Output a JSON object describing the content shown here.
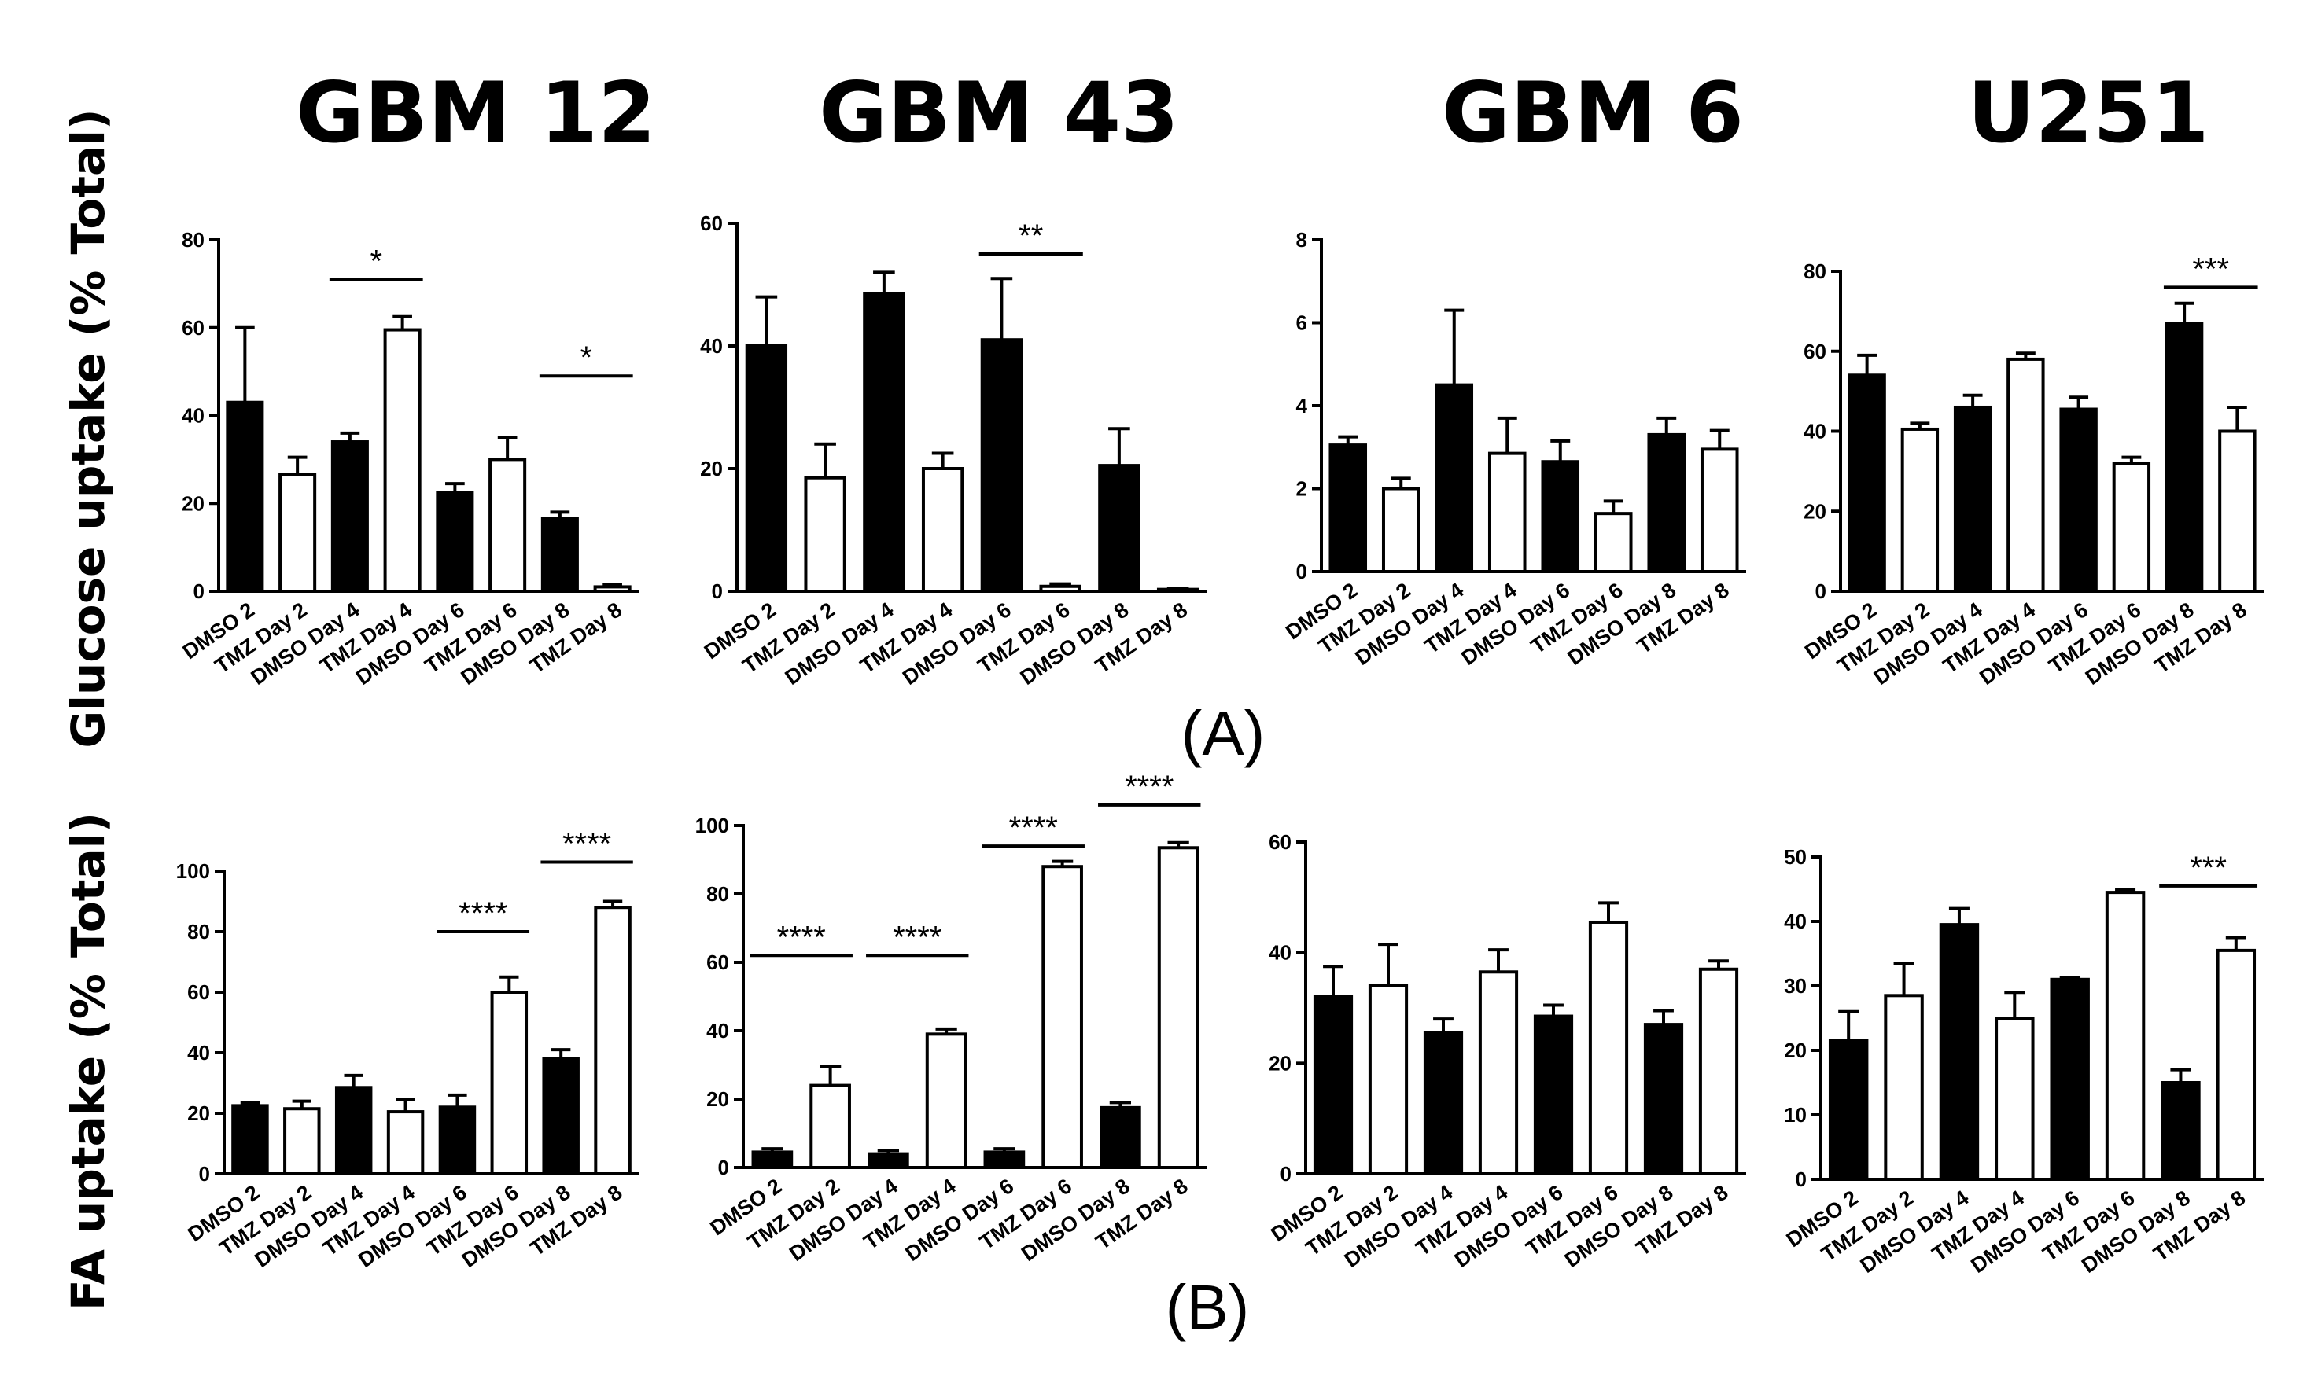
{
  "figure": {
    "column_titles": [
      "GBM 12",
      "GBM 43",
      "GBM 6",
      "U251"
    ],
    "row_ylabels": [
      "Glucose uptake (% Total)",
      "FA uptake (% Total)"
    ],
    "panel_labels": [
      "(A)",
      "(B)"
    ],
    "colors": {
      "dmso_fill": "#000000",
      "tmz_fill": "#ffffff",
      "stroke": "#000000"
    }
  },
  "chart_data": [
    {
      "type": "bar",
      "row": "A",
      "title": "GBM 12",
      "ylabel": "Glucose uptake (% Total)",
      "categories": [
        "DMSO 2",
        "TMZ Day 2",
        "DMSO Day 4",
        "TMZ Day 4",
        "DMSO Day 6",
        "TMZ Day 6",
        "DMSO Day 8",
        "TMZ Day 8"
      ],
      "values": [
        43,
        26.5,
        34,
        59.5,
        22.5,
        30,
        16.5,
        1
      ],
      "errors": [
        17,
        4,
        2,
        3,
        2,
        5,
        1.5,
        0.5
      ],
      "ylim": [
        0,
        80
      ],
      "yticks": [
        0,
        20,
        40,
        60,
        80
      ],
      "significance": [
        {
          "from": 2,
          "to": 3,
          "label": "*",
          "y": 71
        },
        {
          "from": 6,
          "to": 7,
          "label": "*",
          "y": 49
        }
      ]
    },
    {
      "type": "bar",
      "row": "A",
      "title": "GBM 43",
      "ylabel": "Glucose uptake (% Total)",
      "categories": [
        "DMSO 2",
        "TMZ Day 2",
        "DMSO Day 4",
        "TMZ Day 4",
        "DMSO Day 6",
        "TMZ Day 6",
        "DMSO Day 8",
        "TMZ Day 8"
      ],
      "values": [
        40,
        18.5,
        48.5,
        20,
        41,
        0.8,
        20.5,
        0.3
      ],
      "errors": [
        8,
        5.5,
        3.5,
        2.5,
        10,
        0.4,
        6,
        0.1
      ],
      "ylim": [
        0,
        60
      ],
      "yticks": [
        0,
        20,
        40,
        60
      ],
      "significance": [
        {
          "from": 4,
          "to": 5,
          "label": "**",
          "y": 55
        }
      ]
    },
    {
      "type": "bar",
      "row": "A",
      "title": "GBM 6",
      "ylabel": "Glucose uptake (% Total)",
      "categories": [
        "DMSO 2",
        "TMZ Day 2",
        "DMSO Day 4",
        "TMZ Day 4",
        "DMSO Day 6",
        "TMZ Day 6",
        "DMSO Day 8",
        "TMZ Day 8"
      ],
      "values": [
        3.05,
        2,
        4.5,
        2.85,
        2.65,
        1.4,
        3.3,
        2.95
      ],
      "errors": [
        0.2,
        0.25,
        1.8,
        0.85,
        0.5,
        0.3,
        0.4,
        0.45
      ],
      "ylim": [
        0,
        8
      ],
      "yticks": [
        0,
        2,
        4,
        6,
        8
      ],
      "significance": []
    },
    {
      "type": "bar",
      "row": "A",
      "title": "U251",
      "ylabel": "Glucose uptake (% Total)",
      "categories": [
        "DMSO 2",
        "TMZ Day 2",
        "DMSO Day 4",
        "TMZ Day 4",
        "DMSO Day 6",
        "TMZ Day 6",
        "DMSO Day 8",
        "TMZ Day 8"
      ],
      "values": [
        54,
        40.5,
        46,
        58,
        45.5,
        32,
        67,
        40
      ],
      "errors": [
        5,
        1.5,
        3,
        1.5,
        3,
        1.5,
        5,
        6
      ],
      "ylim": [
        0,
        80
      ],
      "yticks": [
        0,
        20,
        40,
        60,
        80
      ],
      "significance": [
        {
          "from": 6,
          "to": 7,
          "label": "***",
          "y": 76
        }
      ]
    },
    {
      "type": "bar",
      "row": "B",
      "title": "GBM 12",
      "ylabel": "FA uptake (% Total)",
      "categories": [
        "DMSO 2",
        "TMZ Day 2",
        "DMSO Day 4",
        "TMZ Day 4",
        "DMSO Day 6",
        "TMZ Day 6",
        "DMSO Day 8",
        "TMZ Day 8"
      ],
      "values": [
        22.5,
        21.5,
        28.5,
        20.5,
        22,
        60,
        38,
        88
      ],
      "errors": [
        1,
        2.5,
        4,
        4,
        4,
        5,
        3,
        2
      ],
      "ylim": [
        0,
        100
      ],
      "yticks": [
        0,
        20,
        40,
        60,
        80,
        100
      ],
      "significance": [
        {
          "from": 4,
          "to": 5,
          "label": "****",
          "y": 80
        },
        {
          "from": 6,
          "to": 7,
          "label": "****",
          "y": 103
        }
      ]
    },
    {
      "type": "bar",
      "row": "B",
      "title": "GBM 43",
      "ylabel": "FA uptake (% Total)",
      "categories": [
        "DMSO 2",
        "TMZ Day 2",
        "DMSO Day 4",
        "TMZ Day 4",
        "DMSO Day 6",
        "TMZ Day 6",
        "DMSO Day 8",
        "TMZ Day 8"
      ],
      "values": [
        4.5,
        24,
        4,
        39,
        4.5,
        88,
        17.5,
        93.5
      ],
      "errors": [
        1,
        5.5,
        1,
        1.5,
        1,
        1.5,
        1.5,
        1.5
      ],
      "ylim": [
        0,
        100
      ],
      "yticks": [
        0,
        20,
        40,
        60,
        80,
        100
      ],
      "significance": [
        {
          "from": 0,
          "to": 1,
          "label": "****",
          "y": 62
        },
        {
          "from": 2,
          "to": 3,
          "label": "****",
          "y": 62
        },
        {
          "from": 4,
          "to": 5,
          "label": "****",
          "y": 94
        },
        {
          "from": 6,
          "to": 7,
          "label": "****",
          "y": 106
        }
      ]
    },
    {
      "type": "bar",
      "row": "B",
      "title": "GBM 6",
      "ylabel": "FA uptake (% Total)",
      "categories": [
        "DMSO 2",
        "TMZ Day 2",
        "DMSO Day 4",
        "TMZ Day 4",
        "DMSO Day 6",
        "TMZ Day 6",
        "DMSO Day 8",
        "TMZ Day 8"
      ],
      "values": [
        32,
        34,
        25.5,
        36.5,
        28.5,
        45.5,
        27,
        37
      ],
      "errors": [
        5.5,
        7.5,
        2.5,
        4,
        2,
        3.5,
        2.5,
        1.5
      ],
      "ylim": [
        0,
        60
      ],
      "yticks": [
        0,
        20,
        40,
        60
      ],
      "significance": []
    },
    {
      "type": "bar",
      "row": "B",
      "title": "U251",
      "ylabel": "FA uptake (% Total)",
      "categories": [
        "DMSO 2",
        "TMZ Day 2",
        "DMSO Day 4",
        "TMZ Day 4",
        "DMSO Day 6",
        "TMZ Day 6",
        "DMSO Day 8",
        "TMZ Day 8"
      ],
      "values": [
        21.5,
        28.5,
        39.5,
        25,
        31,
        44.5,
        15,
        35.5
      ],
      "errors": [
        4.5,
        5,
        2.5,
        4,
        0.3,
        0.4,
        2,
        2
      ],
      "ylim": [
        0,
        50
      ],
      "yticks": [
        0,
        10,
        20,
        30,
        40,
        50
      ],
      "significance": [
        {
          "from": 6,
          "to": 7,
          "label": "***",
          "y": 45.5
        }
      ]
    }
  ]
}
